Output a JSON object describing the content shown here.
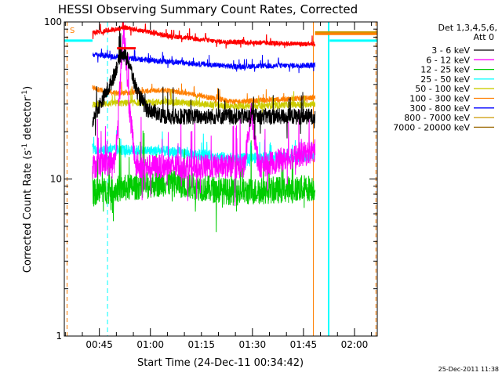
{
  "chart_data": {
    "type": "line",
    "title": "HESSI Observing Summary Count Rates, Corrected",
    "xlabel": "Start Time (24-Dec-11 00:34:42)",
    "ylabel_prefix": "Corrected Count Rate (s",
    "ylabel_mid": " detector",
    "ylabel_suffix": ")",
    "ylabel_sup": "-1",
    "yscale": "log",
    "ylim": [
      1,
      100
    ],
    "xlim_minutes": [
      0,
      92
    ],
    "x_ticks": [
      {
        "label": "00:45",
        "t": 10.3
      },
      {
        "label": "01:00",
        "t": 25.3
      },
      {
        "label": "01:15",
        "t": 40.3
      },
      {
        "label": "01:30",
        "t": 55.3
      },
      {
        "label": "01:45",
        "t": 70.3
      },
      {
        "label": "02:00",
        "t": 85.3
      }
    ],
    "y_ticks": [
      {
        "label": "1",
        "v": 1
      },
      {
        "label": "10",
        "v": 10
      },
      {
        "label": "100",
        "v": 100
      }
    ],
    "legend_header": [
      "Det 1,3,4,5,6,",
      "Att 0"
    ],
    "legend_position": "right",
    "s_flag_label": "S",
    "series": [
      {
        "name": "3 - 6 keV",
        "color": "#000000",
        "base": 25,
        "noise": 0.12,
        "segments": [
          [
            8.3,
            73.7
          ]
        ],
        "profile": [
          [
            8.3,
            24
          ],
          [
            14,
            42
          ],
          [
            17,
            65
          ],
          [
            19,
            55
          ],
          [
            21,
            38
          ],
          [
            24,
            28
          ],
          [
            30,
            25
          ],
          [
            73.7,
            25
          ]
        ]
      },
      {
        "name": "6 - 12 keV",
        "color": "#ff00ff",
        "base": 12,
        "noise": 0.18,
        "segments": [
          [
            8.3,
            73.7
          ]
        ],
        "profile": [
          [
            8.3,
            12
          ],
          [
            15,
            13
          ],
          [
            17.5,
            95
          ],
          [
            19,
            30
          ],
          [
            21,
            12
          ],
          [
            53,
            12
          ],
          [
            55,
            28
          ],
          [
            57,
            12
          ],
          [
            68,
            14
          ],
          [
            73.7,
            15
          ]
        ]
      },
      {
        "name": "12 - 25 keV",
        "color": "#00cc00",
        "base": 8.5,
        "noise": 0.2,
        "segments": [
          [
            8.3,
            73.7
          ]
        ],
        "profile": [
          [
            8.3,
            8.2
          ],
          [
            30,
            9.5
          ],
          [
            50,
            8.2
          ],
          [
            73.7,
            8.8
          ]
        ]
      },
      {
        "name": "25 - 50 keV",
        "color": "#00ffff",
        "base": 15,
        "noise": 0.08,
        "segments": [
          [
            8.3,
            73.7
          ]
        ],
        "profile": [
          [
            8.3,
            15.5
          ],
          [
            30,
            15
          ],
          [
            50,
            13.5
          ],
          [
            73.7,
            14
          ]
        ]
      },
      {
        "name": "50 - 100 keV",
        "color": "#cccc00",
        "base": 30,
        "noise": 0.05,
        "segments": [
          [
            8.3,
            73.7
          ]
        ],
        "profile": [
          [
            8.3,
            30
          ],
          [
            30,
            31
          ],
          [
            50,
            29
          ],
          [
            73.7,
            30
          ]
        ]
      },
      {
        "name": "100 - 300 keV",
        "color": "#ff7f00",
        "base": 37,
        "noise": 0.04,
        "segments": [
          [
            8.3,
            73.7
          ]
        ],
        "profile": [
          [
            8.3,
            38
          ],
          [
            15,
            35
          ],
          [
            30,
            37
          ],
          [
            50,
            31
          ],
          [
            73.7,
            33
          ]
        ]
      },
      {
        "name": "300 - 800 keV",
        "color": "#0000ff",
        "base": 58,
        "noise": 0.04,
        "segments": [
          [
            8.3,
            73.7
          ]
        ],
        "profile": [
          [
            8.3,
            62
          ],
          [
            25,
            57
          ],
          [
            50,
            52
          ],
          [
            73.7,
            53
          ]
        ]
      },
      {
        "name": "800 - 7000 keV",
        "color": "#cc9900",
        "base": 85,
        "noise": 0,
        "segments": [
          [
            73.7,
            92
          ]
        ],
        "profile": [
          [
            73.7,
            86
          ],
          [
            92,
            86
          ]
        ]
      },
      {
        "name": "7000 - 20000 keV",
        "color": "#996600",
        "base": 1,
        "noise": 0,
        "segments": [],
        "profile": []
      }
    ],
    "overlays": [
      {
        "name": "red",
        "color": "#ff0000",
        "noise": 0.035,
        "segments": [
          [
            8.3,
            73.7
          ]
        ],
        "profile": [
          [
            8.3,
            85
          ],
          [
            18,
            92
          ],
          [
            30,
            82
          ],
          [
            45,
            75
          ],
          [
            73.7,
            72
          ]
        ]
      },
      {
        "name": "orange-thick",
        "color": "#ff7f00",
        "noise": 0,
        "segments": [
          [
            73.7,
            92
          ]
        ],
        "profile": [
          [
            73.7,
            84
          ],
          [
            92,
            84
          ]
        ]
      },
      {
        "name": "cyan-thick",
        "color": "#00ffff",
        "noise": 0,
        "segments": [
          [
            -1,
            8.3
          ],
          [
            78,
            92
          ]
        ],
        "profile": [
          [
            -1,
            76
          ],
          [
            8.3,
            76
          ],
          [
            78,
            76
          ],
          [
            92,
            76
          ]
        ]
      }
    ],
    "markers": {
      "vertical_cyan_solid": [
        -0.6,
        77.7
      ],
      "vertical_cyan_dashed": [
        12.7
      ],
      "vertical_orange_dashed": [
        0.8,
        91.6
      ],
      "vertical_orange_solid": [
        73.2
      ],
      "red_bar": {
        "t": [
          15.5,
          21
        ],
        "v": 68
      }
    }
  },
  "footer_timestamp": "25-Dec-2011 11:38"
}
